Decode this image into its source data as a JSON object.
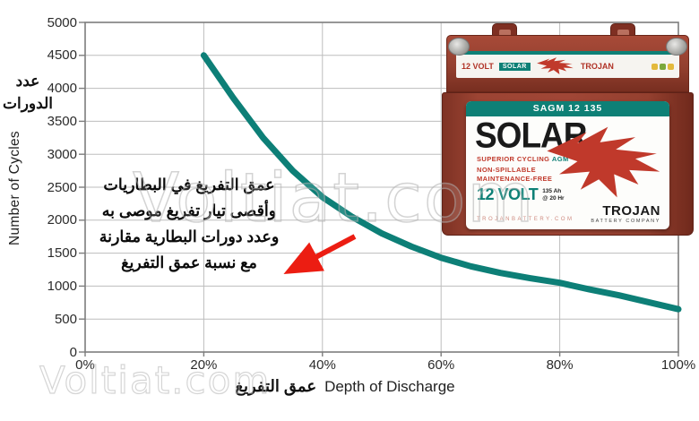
{
  "chart_data": {
    "type": "line",
    "title": "",
    "xlabel": "Depth of Discharge",
    "xlabel_ar": "عمق التفريغ",
    "ylabel": "Number of Cycles",
    "ylabel_ar_line1": "عدد",
    "ylabel_ar_line2": "الدورات",
    "xlim": [
      0,
      100
    ],
    "ylim": [
      0,
      5000
    ],
    "grid": true,
    "x_tick_labels": [
      "0%",
      "20%",
      "40%",
      "60%",
      "80%",
      "100%"
    ],
    "x_tick_values": [
      0,
      20,
      40,
      60,
      80,
      100
    ],
    "y_tick_labels": [
      "0",
      "500",
      "1000",
      "1500",
      "2000",
      "2500",
      "3000",
      "3500",
      "4000",
      "4500",
      "5000"
    ],
    "y_tick_values": [
      0,
      500,
      1000,
      1500,
      2000,
      2500,
      3000,
      3500,
      4000,
      4500,
      5000
    ],
    "series": [
      {
        "name": "cycles-vs-depth-of-discharge",
        "color": "#0d7f77",
        "x": [
          20,
          25,
          30,
          35,
          40,
          45,
          50,
          55,
          60,
          65,
          70,
          75,
          80,
          85,
          90,
          95,
          100
        ],
        "y": [
          4500,
          3850,
          3250,
          2750,
          2350,
          2050,
          1800,
          1600,
          1430,
          1300,
          1200,
          1120,
          1050,
          950,
          860,
          755,
          650
        ]
      }
    ]
  },
  "annotation": {
    "lines": [
      "عمق التفريغ في البطاريات",
      "وأقصى تيار تفريغ موصى به",
      "وعدد دورات البطارية مقارنة",
      "مع نسبة عمق التفريغ"
    ],
    "arrow_color": "#ec1d12"
  },
  "watermark": {
    "large": "Voltiat.com",
    "small": "Voltiat.com"
  },
  "battery": {
    "banner": "SAGM 12 135",
    "brand": "SOLAR",
    "subtitle": "SUPERIOR CYCLING",
    "subtitle_agm": "AGM",
    "feature1": "NON-SPILLABLE",
    "feature2": "MAINTENANCE-FREE",
    "voltage": "12 VOLT",
    "capacity": "135 Ah",
    "rate": "@ 20 Hr",
    "website": "TROJANBATTERY.COM",
    "maker": "TROJAN",
    "maker_sub": "BATTERY COMPANY",
    "lid_voltage": "12 VOLT",
    "lid_brand": "SOLAR",
    "lid_maker": "TROJAN",
    "colors": {
      "body": "#94402f",
      "accent_teal": "#0e8076",
      "accent_red": "#c0392b"
    }
  }
}
